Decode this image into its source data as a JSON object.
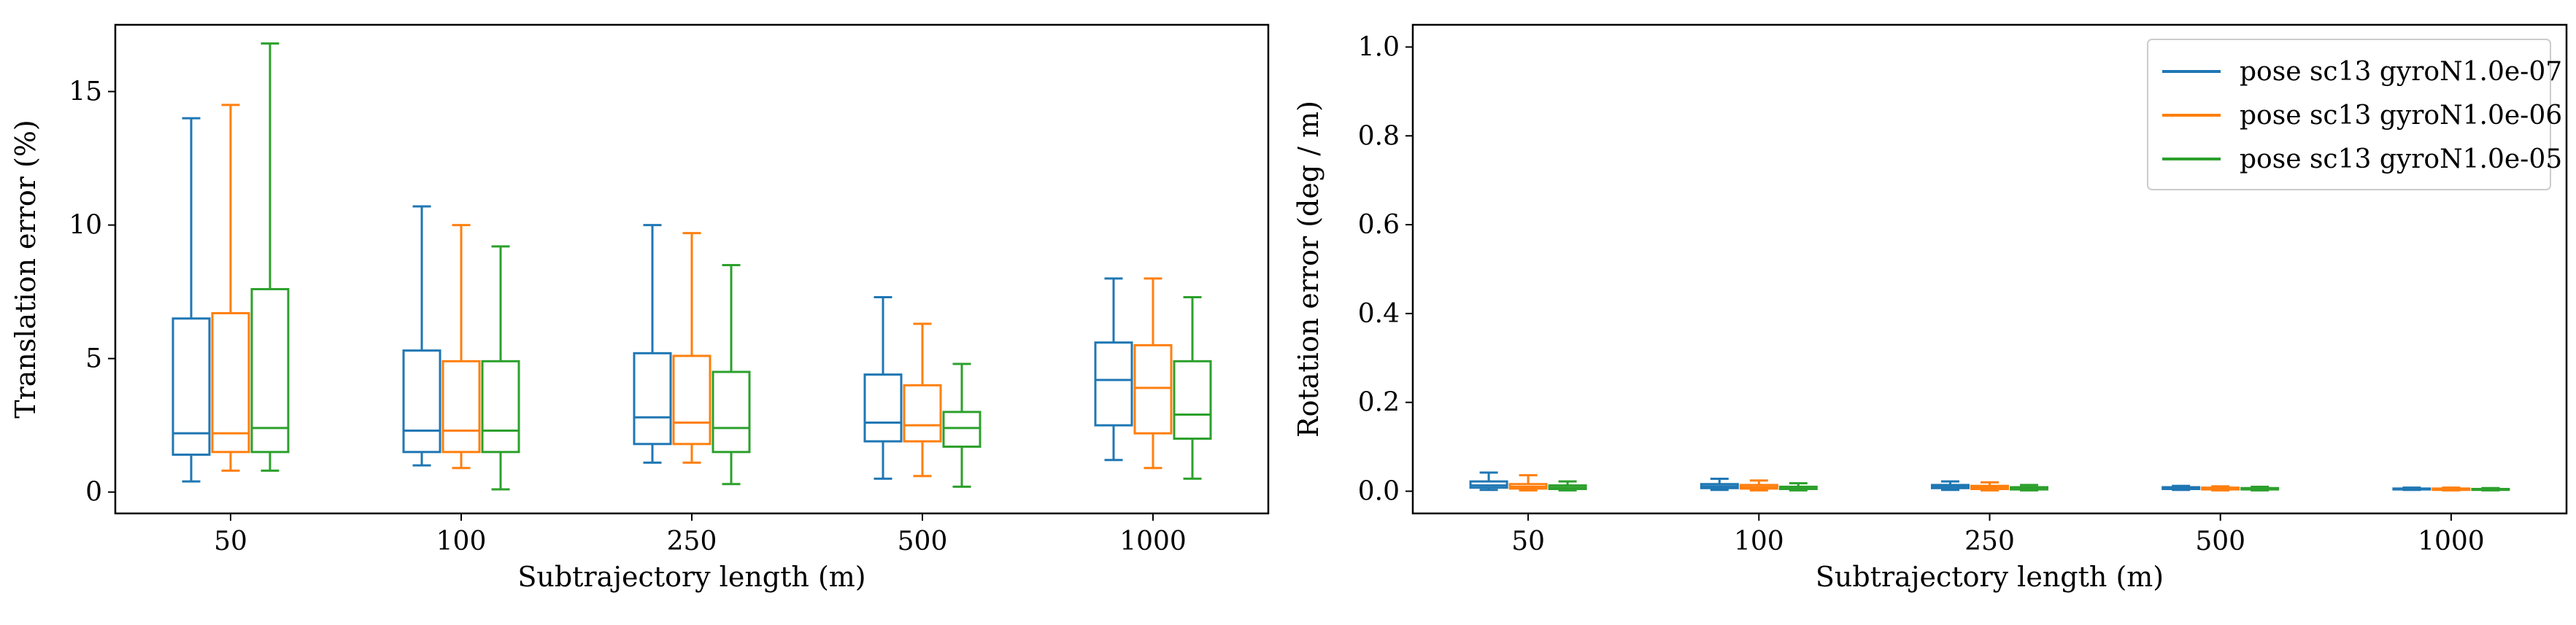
{
  "colors": [
    "#1f77b4",
    "#ff7f0e",
    "#2ca02c"
  ],
  "legend": {
    "entries": [
      "pose sc13 gyroN1.0e-07",
      "pose sc13 gyroN1.0e-06",
      "pose sc13 gyroN1.0e-05"
    ],
    "placement": "upper-right",
    "on_chart_index": 1
  },
  "chart_data": [
    {
      "type": "box",
      "xlabel": "Subtrajectory length (m)",
      "ylabel": "Translation error (%)",
      "categories": [
        "50",
        "100",
        "250",
        "500",
        "1000"
      ],
      "ylim": [
        -0.8,
        17.5
      ],
      "yticks": [
        0,
        5,
        10,
        15
      ],
      "ytick_labels": [
        "0",
        "5",
        "10",
        "15"
      ],
      "grid": false,
      "series": [
        {
          "name": "pose sc13 gyroN1.0e-07",
          "boxes": [
            {
              "min": 0.4,
              "q1": 1.4,
              "median": 2.2,
              "q3": 6.5,
              "max": 14.0
            },
            {
              "min": 1.0,
              "q1": 1.5,
              "median": 2.3,
              "q3": 5.3,
              "max": 10.7
            },
            {
              "min": 1.1,
              "q1": 1.8,
              "median": 2.8,
              "q3": 5.2,
              "max": 10.0
            },
            {
              "min": 0.5,
              "q1": 1.9,
              "median": 2.6,
              "q3": 4.4,
              "max": 7.3
            },
            {
              "min": 1.2,
              "q1": 2.5,
              "median": 4.2,
              "q3": 5.6,
              "max": 8.0
            }
          ]
        },
        {
          "name": "pose sc13 gyroN1.0e-06",
          "boxes": [
            {
              "min": 0.8,
              "q1": 1.5,
              "median": 2.2,
              "q3": 6.7,
              "max": 14.5
            },
            {
              "min": 0.9,
              "q1": 1.5,
              "median": 2.3,
              "q3": 4.9,
              "max": 10.0
            },
            {
              "min": 1.1,
              "q1": 1.8,
              "median": 2.6,
              "q3": 5.1,
              "max": 9.7
            },
            {
              "min": 0.6,
              "q1": 1.9,
              "median": 2.5,
              "q3": 4.0,
              "max": 6.3
            },
            {
              "min": 0.9,
              "q1": 2.2,
              "median": 3.9,
              "q3": 5.5,
              "max": 8.0
            }
          ]
        },
        {
          "name": "pose sc13 gyroN1.0e-05",
          "boxes": [
            {
              "min": 0.8,
              "q1": 1.5,
              "median": 2.4,
              "q3": 7.6,
              "max": 16.8
            },
            {
              "min": 0.1,
              "q1": 1.5,
              "median": 2.3,
              "q3": 4.9,
              "max": 9.2
            },
            {
              "min": 0.3,
              "q1": 1.5,
              "median": 2.4,
              "q3": 4.5,
              "max": 8.5
            },
            {
              "min": 0.2,
              "q1": 1.7,
              "median": 2.4,
              "q3": 3.0,
              "max": 4.8
            },
            {
              "min": 0.5,
              "q1": 2.0,
              "median": 2.9,
              "q3": 4.9,
              "max": 7.3
            }
          ]
        }
      ]
    },
    {
      "type": "box",
      "xlabel": "Subtrajectory length (m)",
      "ylabel": "Rotation error (deg / m)",
      "categories": [
        "50",
        "100",
        "250",
        "500",
        "1000"
      ],
      "ylim": [
        -0.05,
        1.05
      ],
      "yticks": [
        0.0,
        0.2,
        0.4,
        0.6,
        0.8,
        1.0
      ],
      "ytick_labels": [
        "0.0",
        "0.2",
        "0.4",
        "0.6",
        "0.8",
        "1.0"
      ],
      "grid": false,
      "series": [
        {
          "name": "pose sc13 gyroN1.0e-07",
          "boxes": [
            {
              "min": 0.003,
              "q1": 0.008,
              "median": 0.013,
              "q3": 0.022,
              "max": 0.042
            },
            {
              "min": 0.003,
              "q1": 0.007,
              "median": 0.011,
              "q3": 0.016,
              "max": 0.028
            },
            {
              "min": 0.003,
              "q1": 0.007,
              "median": 0.01,
              "q3": 0.014,
              "max": 0.022
            },
            {
              "min": 0.003,
              "q1": 0.005,
              "median": 0.007,
              "q3": 0.009,
              "max": 0.012
            },
            {
              "min": 0.003,
              "q1": 0.004,
              "median": 0.005,
              "q3": 0.006,
              "max": 0.008
            }
          ]
        },
        {
          "name": "pose sc13 gyroN1.0e-06",
          "boxes": [
            {
              "min": 0.002,
              "q1": 0.006,
              "median": 0.01,
              "q3": 0.016,
              "max": 0.036
            },
            {
              "min": 0.002,
              "q1": 0.006,
              "median": 0.009,
              "q3": 0.014,
              "max": 0.024
            },
            {
              "min": 0.002,
              "q1": 0.005,
              "median": 0.008,
              "q3": 0.012,
              "max": 0.02
            },
            {
              "min": 0.002,
              "q1": 0.004,
              "median": 0.006,
              "q3": 0.008,
              "max": 0.011
            },
            {
              "min": 0.002,
              "q1": 0.003,
              "median": 0.005,
              "q3": 0.006,
              "max": 0.008
            }
          ]
        },
        {
          "name": "pose sc13 gyroN1.0e-05",
          "boxes": [
            {
              "min": 0.002,
              "q1": 0.005,
              "median": 0.008,
              "q3": 0.013,
              "max": 0.022
            },
            {
              "min": 0.002,
              "q1": 0.005,
              "median": 0.007,
              "q3": 0.01,
              "max": 0.018
            },
            {
              "min": 0.002,
              "q1": 0.004,
              "median": 0.006,
              "q3": 0.009,
              "max": 0.014
            },
            {
              "min": 0.002,
              "q1": 0.004,
              "median": 0.005,
              "q3": 0.007,
              "max": 0.01
            },
            {
              "min": 0.002,
              "q1": 0.003,
              "median": 0.004,
              "q3": 0.005,
              "max": 0.007
            }
          ]
        }
      ]
    }
  ]
}
